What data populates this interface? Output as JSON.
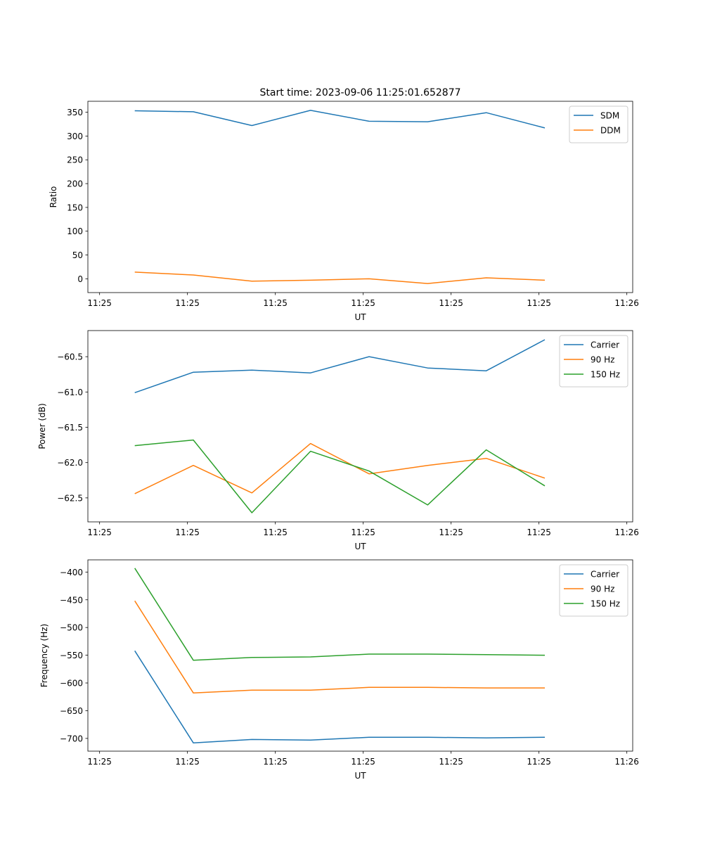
{
  "colors": {
    "blue": "#1f77b4",
    "orange": "#ff7f0e",
    "green": "#2ca02c"
  },
  "chart_data": [
    {
      "type": "line",
      "title": "Start time: 2023-09-06 11:25:01.652877",
      "xlabel": "UT",
      "ylabel": "Ratio",
      "x": [
        1,
        2,
        3,
        4,
        5,
        6,
        7,
        8
      ],
      "xlim": [
        0.2,
        9.5
      ],
      "xticks": [
        0.4,
        1.9,
        3.4,
        4.9,
        6.4,
        7.9,
        9.4
      ],
      "xtick_labels": [
        "11:25",
        "11:25",
        "11:25",
        "11:25",
        "11:25",
        "11:25",
        "11:26"
      ],
      "ylim": [
        -29,
        373
      ],
      "yticks": [
        0,
        50,
        100,
        150,
        200,
        250,
        300,
        350
      ],
      "ytick_labels": [
        "0",
        "50",
        "100",
        "150",
        "200",
        "250",
        "300",
        "350"
      ],
      "legend": "top-right",
      "series": [
        {
          "name": "SDM",
          "color": "#1f77b4",
          "values": [
            353,
            351,
            322,
            354,
            331,
            330,
            349,
            317
          ]
        },
        {
          "name": "DDM",
          "color": "#ff7f0e",
          "values": [
            14,
            8,
            -5,
            -3,
            0,
            -10,
            2,
            -3
          ]
        }
      ]
    },
    {
      "type": "line",
      "title": "",
      "xlabel": "UT",
      "ylabel": "Power (dB)",
      "x": [
        1,
        2,
        3,
        4,
        5,
        6,
        7,
        8
      ],
      "xlim": [
        0.2,
        9.5
      ],
      "xticks": [
        0.4,
        1.9,
        3.4,
        4.9,
        6.4,
        7.9,
        9.4
      ],
      "xtick_labels": [
        "11:25",
        "11:25",
        "11:25",
        "11:25",
        "11:25",
        "11:25",
        "11:26"
      ],
      "ylim": [
        -62.84,
        -60.13
      ],
      "yticks": [
        -62.5,
        -62.0,
        -61.5,
        -61.0,
        -60.5
      ],
      "ytick_labels": [
        "−62.5",
        "−62.0",
        "−61.5",
        "−61.0",
        "−60.5"
      ],
      "legend": "top-right",
      "series": [
        {
          "name": "Carrier",
          "color": "#1f77b4",
          "values": [
            -61.01,
            -60.72,
            -60.69,
            -60.73,
            -60.5,
            -60.66,
            -60.7,
            -60.26
          ]
        },
        {
          "name": "90 Hz",
          "color": "#ff7f0e",
          "values": [
            -62.44,
            -62.04,
            -62.43,
            -61.73,
            -62.16,
            -62.04,
            -61.94,
            -62.22
          ]
        },
        {
          "name": "150 Hz",
          "color": "#2ca02c",
          "values": [
            -61.76,
            -61.68,
            -62.71,
            -61.84,
            -62.12,
            -62.6,
            -61.82,
            -62.33
          ]
        }
      ]
    },
    {
      "type": "line",
      "title": "",
      "xlabel": "UT",
      "ylabel": "Frequency (Hz)",
      "x": [
        1,
        2,
        3,
        4,
        5,
        6,
        7,
        8
      ],
      "xlim": [
        0.2,
        9.5
      ],
      "xticks": [
        0.4,
        1.9,
        3.4,
        4.9,
        6.4,
        7.9,
        9.4
      ],
      "xtick_labels": [
        "11:25",
        "11:25",
        "11:25",
        "11:25",
        "11:25",
        "11:25",
        "11:26"
      ],
      "ylim": [
        -723,
        -378
      ],
      "yticks": [
        -700,
        -650,
        -600,
        -550,
        -500,
        -450,
        -400
      ],
      "ytick_labels": [
        "−700",
        "−650",
        "−600",
        "−550",
        "−500",
        "−450",
        "−400"
      ],
      "legend": "top-right",
      "series": [
        {
          "name": "Carrier",
          "color": "#1f77b4",
          "values": [
            -542,
            -708,
            -702,
            -703,
            -698,
            -698,
            -699,
            -698
          ]
        },
        {
          "name": "90 Hz",
          "color": "#ff7f0e",
          "values": [
            -452,
            -618,
            -613,
            -613,
            -608,
            -608,
            -609,
            -609
          ]
        },
        {
          "name": "150 Hz",
          "color": "#2ca02c",
          "values": [
            -393,
            -559,
            -554,
            -553,
            -548,
            -548,
            -549,
            -550
          ]
        }
      ]
    }
  ]
}
